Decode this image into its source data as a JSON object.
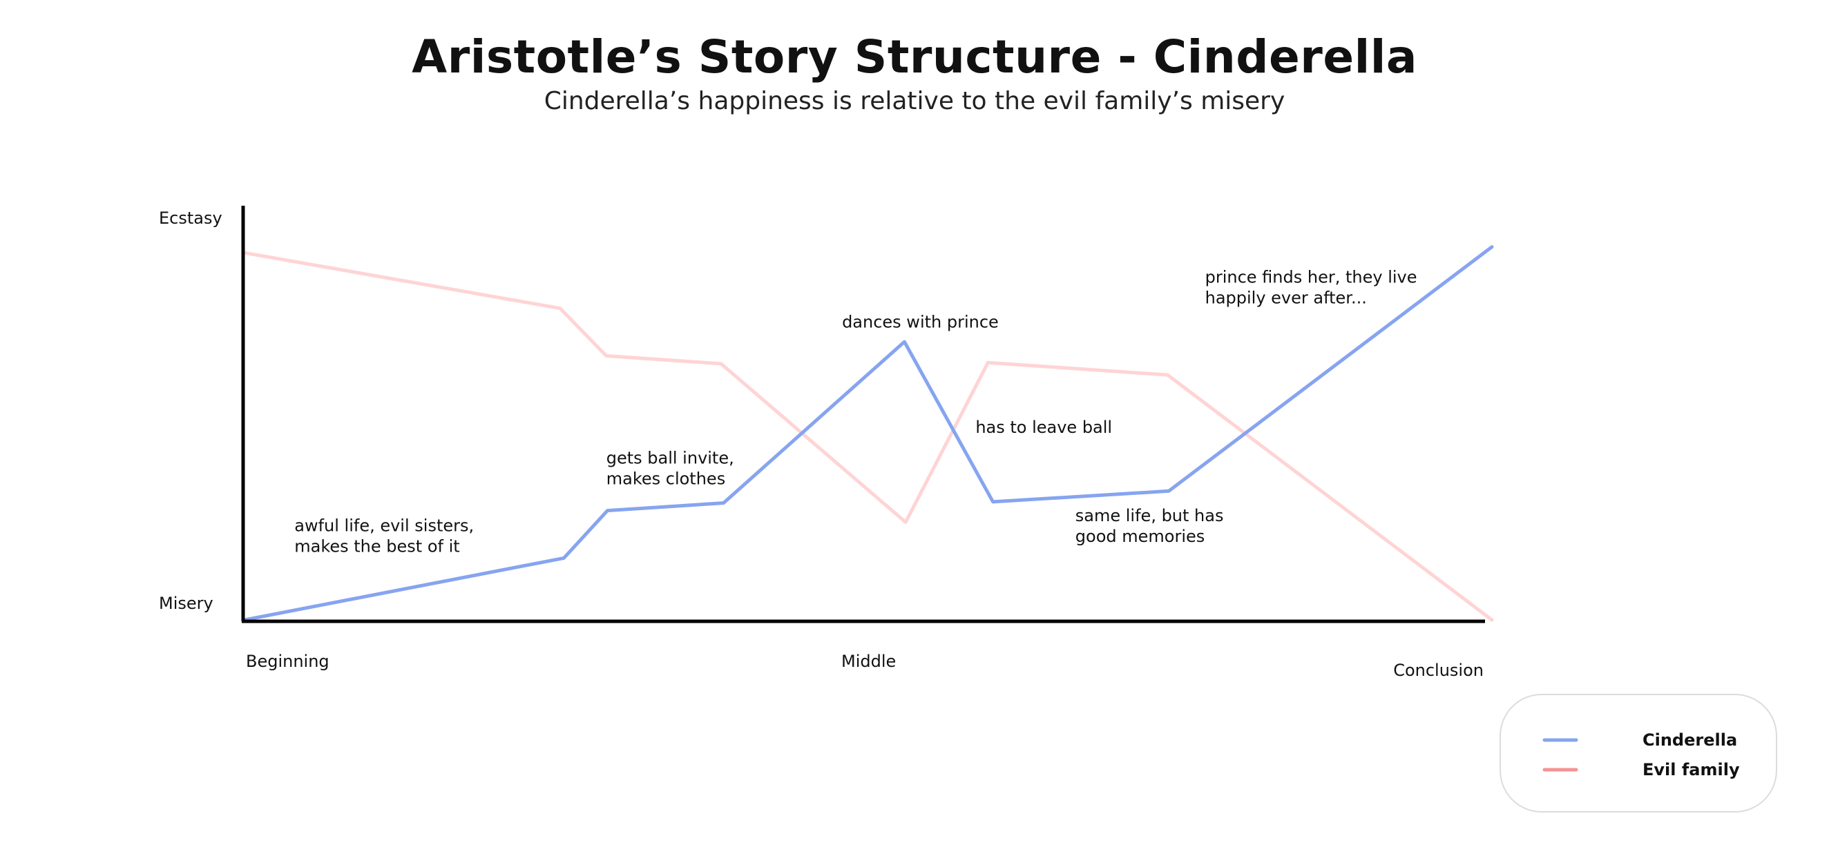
{
  "chart_data": {
    "type": "line",
    "title": "Aristotle’s Story Structure - Cinderella",
    "subtitle": "Cinderella’s happiness is relative to the evil family’s misery",
    "xlabel": "",
    "ylabel": "",
    "x_ticks": [
      "Beginning",
      "Middle",
      "Conclusion"
    ],
    "y_ticks": [
      "Misery",
      "Ecstasy"
    ],
    "xlim": [
      0,
      100
    ],
    "ylim": [
      0,
      100
    ],
    "grid": false,
    "legend_position": "bottom-right",
    "series": [
      {
        "name": "Cinderella",
        "color": "#86a4f0",
        "x": [
          0,
          25.6,
          29.1,
          38.4,
          52.9,
          60.0,
          74.1,
          100
        ],
        "y": [
          0,
          15.5,
          27.4,
          29.3,
          69.7,
          29.6,
          32.3,
          93.5
        ]
      },
      {
        "name": "Evil family",
        "color": "#ffd4d4",
        "legend_color": "#f49494",
        "x": [
          0,
          25.3,
          29.0,
          38.2,
          53.0,
          59.6,
          74.0,
          100
        ],
        "y": [
          92.0,
          78.1,
          66.2,
          64.2,
          24.5,
          64.5,
          61.4,
          0
        ]
      }
    ],
    "annotations": [
      {
        "lines": [
          "awful life, evil sisters,",
          "makes the best of it"
        ],
        "x": 4.0,
        "y": 22.2
      },
      {
        "lines": [
          "gets ball invite,",
          "makes clothes"
        ],
        "x": 29.0,
        "y": 39.2
      },
      {
        "lines": [
          "dances with prince"
        ],
        "x": 47.9,
        "y": 73.3
      },
      {
        "lines": [
          "has to leave ball"
        ],
        "x": 58.6,
        "y": 46.9
      },
      {
        "lines": [
          "same life, but has",
          "good memories"
        ],
        "x": 66.6,
        "y": 24.7
      },
      {
        "lines": [
          "prince finds her, they live",
          "happily ever after..."
        ],
        "x": 77.0,
        "y": 84.5
      }
    ]
  }
}
